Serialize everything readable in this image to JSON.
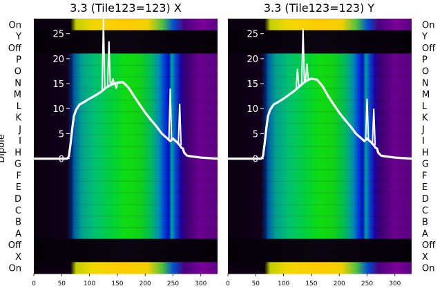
{
  "chart_data": [
    {
      "type": "line",
      "title": "3.3 (Tile123=123) X",
      "ylabel": "Dipole",
      "xlim": [
        0,
        330
      ],
      "ylim": [
        -23,
        28
      ],
      "x_ticks": [
        0,
        50,
        100,
        150,
        200,
        250,
        300
      ],
      "y_ticks": [
        0,
        5,
        10,
        15,
        20,
        25
      ],
      "grid": false,
      "background": "waterfall spectrogram (dipole rows vs channel)",
      "series": [
        {
          "color": "#ffffff",
          "x": [
            0,
            60,
            63,
            66,
            69,
            72,
            76,
            82,
            90,
            100,
            110,
            120,
            130,
            140,
            150,
            160,
            170,
            180,
            190,
            200,
            210,
            220,
            230,
            240,
            245,
            250,
            255,
            260,
            265,
            268,
            270,
            275,
            280,
            300,
            330
          ],
          "y": [
            0,
            0,
            0.5,
            3,
            6,
            8.5,
            9.8,
            10.8,
            11.3,
            12,
            12.6,
            13.3,
            14.2,
            14.8,
            15.2,
            15.3,
            14.2,
            12.5,
            10.8,
            9.2,
            7.8,
            6.5,
            5,
            4,
            3.5,
            4,
            3.5,
            3,
            2.2,
            2,
            1.2,
            0.6,
            0.5,
            0.2,
            0
          ]
        }
      ],
      "spikes": [
        {
          "x": 125,
          "y": 40
        },
        {
          "x": 135,
          "y": 23.5
        },
        {
          "x": 142,
          "y": 16
        },
        {
          "x": 148,
          "y": 14
        },
        {
          "x": 245,
          "y": 14
        },
        {
          "x": 262,
          "y": 11
        }
      ]
    },
    {
      "type": "line",
      "title": "3.3 (Tile123=123) Y",
      "ylabel": "",
      "xlim": [
        0,
        330
      ],
      "ylim": [
        -23,
        28
      ],
      "x_ticks": [
        0,
        50,
        100,
        150,
        200,
        250,
        300
      ],
      "y_ticks": [
        0,
        5,
        10,
        15,
        20,
        25
      ],
      "grid": false,
      "background": "waterfall spectrogram (dipole rows vs channel)",
      "series": [
        {
          "color": "#ffffff",
          "x": [
            0,
            60,
            63,
            66,
            69,
            72,
            76,
            82,
            90,
            100,
            110,
            120,
            130,
            140,
            150,
            160,
            170,
            180,
            190,
            200,
            210,
            220,
            230,
            240,
            245,
            250,
            255,
            260,
            265,
            268,
            270,
            275,
            280,
            300,
            330
          ],
          "y": [
            0,
            0,
            0.5,
            3,
            6,
            8.5,
            9.8,
            10.8,
            11.3,
            12,
            12.8,
            13.6,
            14.6,
            15.5,
            16,
            15.8,
            14.5,
            12.5,
            10.8,
            9.2,
            7.8,
            6.5,
            5,
            4,
            3.5,
            4,
            3.5,
            3,
            2.2,
            2,
            1.2,
            0.6,
            0.5,
            0.2,
            0
          ]
        }
      ],
      "spikes": [
        {
          "x": 125,
          "y": 18
        },
        {
          "x": 135,
          "y": 26
        },
        {
          "x": 142,
          "y": 19
        },
        {
          "x": 148,
          "y": 16
        },
        {
          "x": 250,
          "y": 12
        },
        {
          "x": 262,
          "y": 10
        }
      ]
    }
  ],
  "dipole_labels": [
    "On",
    "Y",
    "Off",
    "P",
    "O",
    "N",
    "M",
    "L",
    "K",
    "J",
    "I",
    "H",
    "G",
    "F",
    "E",
    "D",
    "C",
    "B",
    "A",
    "Off",
    "X",
    "On"
  ],
  "dipole_axis_label": "Dipole"
}
